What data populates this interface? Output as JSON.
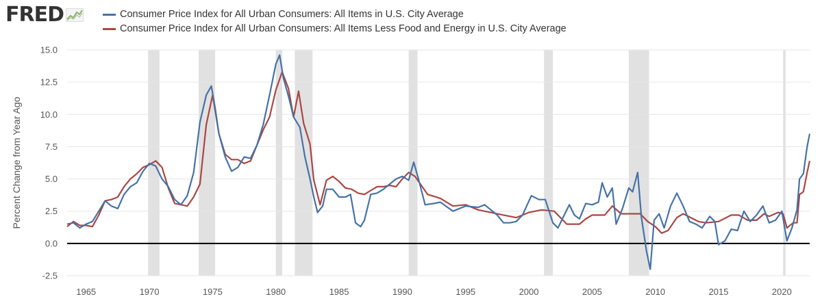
{
  "brand": {
    "logo_text": "FRED",
    "icon": "fred-line-chart-icon"
  },
  "chart_data": {
    "type": "line",
    "title": "",
    "xlabel": "",
    "ylabel": "Percent Change from Year Ago",
    "xlim": [
      1963.5,
      2022.2
    ],
    "ylim": [
      -2.5,
      15.0
    ],
    "yticks": [
      15.0,
      12.5,
      10.0,
      7.5,
      5.0,
      2.5,
      0.0,
      -2.5
    ],
    "ytick_labels": [
      "15.0",
      "12.5",
      "10.0",
      "7.5",
      "5.0",
      "2.5",
      "0.0",
      "-2.5"
    ],
    "xticks": [
      1965,
      1970,
      1975,
      1980,
      1985,
      1990,
      1995,
      2000,
      2005,
      2010,
      2015,
      2020
    ],
    "xtick_labels": [
      "1965",
      "1970",
      "1975",
      "1980",
      "1985",
      "1990",
      "1995",
      "2000",
      "2005",
      "2010",
      "2015",
      "2020"
    ],
    "grid": "horizontal",
    "legend_position": "top",
    "zero_line": true,
    "recessions": [
      [
        1969.9,
        1970.8
      ],
      [
        1973.9,
        1975.2
      ],
      [
        1980.0,
        1980.5
      ],
      [
        1981.5,
        1982.9
      ],
      [
        1990.5,
        1991.2
      ],
      [
        2001.2,
        2001.9
      ],
      [
        2007.9,
        2009.5
      ],
      [
        2020.1,
        2020.3
      ]
    ],
    "series": [
      {
        "name": "Consumer Price Index for All Urban Consumers: All Items in U.S. City Average",
        "color": "#4572a7",
        "points": [
          [
            1963.5,
            1.5
          ],
          [
            1964.0,
            1.6
          ],
          [
            1964.5,
            1.2
          ],
          [
            1965.0,
            1.5
          ],
          [
            1965.5,
            1.7
          ],
          [
            1966.0,
            2.5
          ],
          [
            1966.5,
            3.3
          ],
          [
            1967.0,
            2.9
          ],
          [
            1967.5,
            2.7
          ],
          [
            1968.0,
            3.8
          ],
          [
            1968.5,
            4.4
          ],
          [
            1969.0,
            4.7
          ],
          [
            1969.5,
            5.6
          ],
          [
            1970.0,
            6.2
          ],
          [
            1970.5,
            6.0
          ],
          [
            1971.0,
            5.0
          ],
          [
            1971.5,
            4.4
          ],
          [
            1972.0,
            3.4
          ],
          [
            1972.5,
            3.0
          ],
          [
            1973.0,
            3.7
          ],
          [
            1973.5,
            5.5
          ],
          [
            1974.0,
            9.4
          ],
          [
            1974.5,
            11.5
          ],
          [
            1974.9,
            12.2
          ],
          [
            1975.2,
            10.5
          ],
          [
            1975.5,
            8.5
          ],
          [
            1976.0,
            6.7
          ],
          [
            1976.5,
            5.6
          ],
          [
            1977.0,
            5.9
          ],
          [
            1977.5,
            6.7
          ],
          [
            1978.0,
            6.6
          ],
          [
            1978.5,
            7.6
          ],
          [
            1979.0,
            9.2
          ],
          [
            1979.5,
            11.5
          ],
          [
            1980.0,
            13.9
          ],
          [
            1980.3,
            14.6
          ],
          [
            1980.6,
            12.8
          ],
          [
            1981.0,
            11.4
          ],
          [
            1981.4,
            9.8
          ],
          [
            1981.9,
            9.0
          ],
          [
            1982.3,
            6.7
          ],
          [
            1982.7,
            5.0
          ],
          [
            1983.0,
            3.6
          ],
          [
            1983.3,
            2.4
          ],
          [
            1983.7,
            2.9
          ],
          [
            1984.0,
            4.2
          ],
          [
            1984.5,
            4.2
          ],
          [
            1985.0,
            3.6
          ],
          [
            1985.5,
            3.6
          ],
          [
            1985.9,
            3.8
          ],
          [
            1986.3,
            1.6
          ],
          [
            1986.7,
            1.3
          ],
          [
            1987.0,
            1.8
          ],
          [
            1987.5,
            3.8
          ],
          [
            1988.0,
            3.9
          ],
          [
            1988.5,
            4.2
          ],
          [
            1989.0,
            4.6
          ],
          [
            1989.5,
            5.0
          ],
          [
            1990.0,
            5.2
          ],
          [
            1990.5,
            4.9
          ],
          [
            1990.9,
            6.3
          ],
          [
            1991.3,
            4.9
          ],
          [
            1991.8,
            3.0
          ],
          [
            1992.5,
            3.1
          ],
          [
            1993.0,
            3.2
          ],
          [
            1994.0,
            2.5
          ],
          [
            1995.0,
            2.9
          ],
          [
            1996.0,
            2.8
          ],
          [
            1996.5,
            3.0
          ],
          [
            1997.5,
            2.2
          ],
          [
            1998.0,
            1.6
          ],
          [
            1998.5,
            1.6
          ],
          [
            1999.0,
            1.7
          ],
          [
            1999.5,
            2.2
          ],
          [
            2000.2,
            3.7
          ],
          [
            2000.8,
            3.4
          ],
          [
            2001.3,
            3.4
          ],
          [
            2001.9,
            1.6
          ],
          [
            2002.3,
            1.2
          ],
          [
            2002.8,
            2.2
          ],
          [
            2003.2,
            3.0
          ],
          [
            2003.6,
            2.2
          ],
          [
            2004.0,
            1.9
          ],
          [
            2004.5,
            3.1
          ],
          [
            2005.0,
            3.0
          ],
          [
            2005.5,
            3.2
          ],
          [
            2005.8,
            4.7
          ],
          [
            2006.2,
            3.6
          ],
          [
            2006.6,
            4.3
          ],
          [
            2006.9,
            1.5
          ],
          [
            2007.4,
            2.7
          ],
          [
            2007.9,
            4.3
          ],
          [
            2008.2,
            4.0
          ],
          [
            2008.6,
            5.5
          ],
          [
            2008.9,
            2.0
          ],
          [
            2009.3,
            -0.6
          ],
          [
            2009.6,
            -2.0
          ],
          [
            2009.9,
            1.8
          ],
          [
            2010.3,
            2.3
          ],
          [
            2010.7,
            1.2
          ],
          [
            2011.2,
            2.9
          ],
          [
            2011.7,
            3.9
          ],
          [
            2012.2,
            2.9
          ],
          [
            2012.7,
            1.7
          ],
          [
            2013.2,
            1.5
          ],
          [
            2013.7,
            1.2
          ],
          [
            2014.3,
            2.1
          ],
          [
            2014.7,
            1.7
          ],
          [
            2015.0,
            -0.1
          ],
          [
            2015.5,
            0.2
          ],
          [
            2016.0,
            1.1
          ],
          [
            2016.5,
            1.0
          ],
          [
            2017.0,
            2.5
          ],
          [
            2017.5,
            1.7
          ],
          [
            2018.0,
            2.2
          ],
          [
            2018.5,
            2.9
          ],
          [
            2019.0,
            1.6
          ],
          [
            2019.5,
            1.8
          ],
          [
            2020.0,
            2.5
          ],
          [
            2020.4,
            0.2
          ],
          [
            2020.8,
            1.2
          ],
          [
            2021.2,
            2.6
          ],
          [
            2021.4,
            5.0
          ],
          [
            2021.7,
            5.4
          ],
          [
            2022.0,
            7.5
          ],
          [
            2022.2,
            8.5
          ]
        ]
      },
      {
        "name": "Consumer Price Index for All Urban Consumers: All Items Less Food and Energy in U.S. City Average",
        "color": "#aa4643",
        "points": [
          [
            1963.5,
            1.3
          ],
          [
            1964.0,
            1.7
          ],
          [
            1964.5,
            1.4
          ],
          [
            1965.0,
            1.4
          ],
          [
            1965.5,
            1.3
          ],
          [
            1966.0,
            2.2
          ],
          [
            1966.5,
            3.3
          ],
          [
            1967.0,
            3.4
          ],
          [
            1967.5,
            3.6
          ],
          [
            1968.0,
            4.4
          ],
          [
            1968.5,
            5.0
          ],
          [
            1969.0,
            5.4
          ],
          [
            1969.5,
            5.9
          ],
          [
            1970.0,
            6.1
          ],
          [
            1970.5,
            6.4
          ],
          [
            1971.0,
            5.9
          ],
          [
            1971.5,
            4.3
          ],
          [
            1972.0,
            3.1
          ],
          [
            1972.5,
            3.0
          ],
          [
            1973.0,
            2.9
          ],
          [
            1973.5,
            3.6
          ],
          [
            1974.0,
            4.6
          ],
          [
            1974.5,
            9.2
          ],
          [
            1975.0,
            11.5
          ],
          [
            1975.5,
            8.5
          ],
          [
            1976.0,
            6.9
          ],
          [
            1976.5,
            6.5
          ],
          [
            1977.0,
            6.5
          ],
          [
            1977.5,
            6.2
          ],
          [
            1978.0,
            6.4
          ],
          [
            1978.5,
            7.6
          ],
          [
            1979.0,
            8.8
          ],
          [
            1979.5,
            9.8
          ],
          [
            1980.0,
            11.9
          ],
          [
            1980.5,
            13.3
          ],
          [
            1981.0,
            12.0
          ],
          [
            1981.4,
            9.8
          ],
          [
            1981.8,
            11.8
          ],
          [
            1982.2,
            9.3
          ],
          [
            1982.7,
            7.7
          ],
          [
            1983.0,
            4.9
          ],
          [
            1983.5,
            3.0
          ],
          [
            1984.0,
            4.9
          ],
          [
            1984.5,
            5.2
          ],
          [
            1985.0,
            4.8
          ],
          [
            1985.5,
            4.3
          ],
          [
            1986.0,
            4.2
          ],
          [
            1986.5,
            3.9
          ],
          [
            1987.0,
            3.8
          ],
          [
            1987.5,
            4.1
          ],
          [
            1988.0,
            4.4
          ],
          [
            1988.5,
            4.4
          ],
          [
            1989.0,
            4.5
          ],
          [
            1989.5,
            4.4
          ],
          [
            1990.0,
            5.0
          ],
          [
            1990.5,
            5.5
          ],
          [
            1991.0,
            5.2
          ],
          [
            1991.5,
            4.5
          ],
          [
            1992.0,
            3.8
          ],
          [
            1993.0,
            3.5
          ],
          [
            1994.0,
            2.9
          ],
          [
            1995.0,
            3.0
          ],
          [
            1996.0,
            2.6
          ],
          [
            1997.0,
            2.4
          ],
          [
            1998.0,
            2.2
          ],
          [
            1999.0,
            2.0
          ],
          [
            2000.0,
            2.4
          ],
          [
            2001.0,
            2.6
          ],
          [
            2002.0,
            2.5
          ],
          [
            2003.0,
            1.5
          ],
          [
            2004.0,
            1.5
          ],
          [
            2004.5,
            1.9
          ],
          [
            2005.0,
            2.2
          ],
          [
            2006.0,
            2.2
          ],
          [
            2006.6,
            2.9
          ],
          [
            2007.3,
            2.3
          ],
          [
            2008.0,
            2.3
          ],
          [
            2008.8,
            2.3
          ],
          [
            2009.4,
            1.7
          ],
          [
            2010.0,
            1.3
          ],
          [
            2010.5,
            0.8
          ],
          [
            2011.0,
            1.0
          ],
          [
            2011.7,
            2.0
          ],
          [
            2012.2,
            2.3
          ],
          [
            2012.8,
            2.0
          ],
          [
            2013.4,
            1.7
          ],
          [
            2014.0,
            1.6
          ],
          [
            2015.0,
            1.7
          ],
          [
            2016.0,
            2.2
          ],
          [
            2016.6,
            2.2
          ],
          [
            2017.3,
            1.8
          ],
          [
            2018.0,
            1.8
          ],
          [
            2018.6,
            2.3
          ],
          [
            2019.0,
            2.1
          ],
          [
            2019.7,
            2.4
          ],
          [
            2020.1,
            2.3
          ],
          [
            2020.4,
            1.2
          ],
          [
            2020.9,
            1.6
          ],
          [
            2021.2,
            1.6
          ],
          [
            2021.4,
            3.8
          ],
          [
            2021.7,
            4.0
          ],
          [
            2022.0,
            5.5
          ],
          [
            2022.2,
            6.4
          ]
        ]
      }
    ]
  }
}
